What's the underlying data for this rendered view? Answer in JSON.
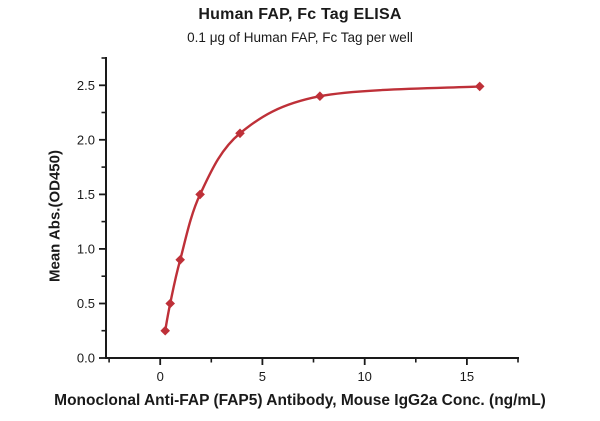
{
  "chart_data": {
    "type": "scatter",
    "title": "Human FAP, Fc Tag ELISA",
    "subtitle": "0.1 μg of Human FAP, Fc Tag per well",
    "xlabel": "Monoclonal Anti-FAP (FAP5) Antibody, Mouse IgG2a Conc. (ng/mL)",
    "ylabel": "Mean Abs.(OD450)",
    "x": [
      0.244,
      0.488,
      0.977,
      1.953,
      3.906,
      7.813,
      15.625
    ],
    "y": [
      0.25,
      0.5,
      0.9,
      1.5,
      2.06,
      2.4,
      2.49
    ],
    "fit_curve": "4PL sigmoidal fit through points, plateau near 2.5",
    "marker": "diamond",
    "series_color": "#be3038",
    "axis_color": "#1a1a1a",
    "xlim": [
      -2.65,
      17.5
    ],
    "ylim": [
      0,
      2.75
    ],
    "x_ticks": {
      "major": [
        0,
        5,
        10,
        15
      ],
      "major_labels": [
        "0",
        "5",
        "10",
        "15"
      ],
      "minor": [
        -2.5,
        2.5,
        7.5,
        12.5,
        17.5
      ]
    },
    "y_ticks": {
      "major": [
        0,
        0.5,
        1.0,
        1.5,
        2.0,
        2.5
      ],
      "major_labels": [
        "0.0",
        "0.5",
        "1.0",
        "1.5",
        "2.0",
        "2.5"
      ],
      "minor": [
        0.25,
        0.75,
        1.25,
        1.75,
        2.25,
        2.75
      ]
    },
    "grid": "off",
    "legend": "none"
  }
}
